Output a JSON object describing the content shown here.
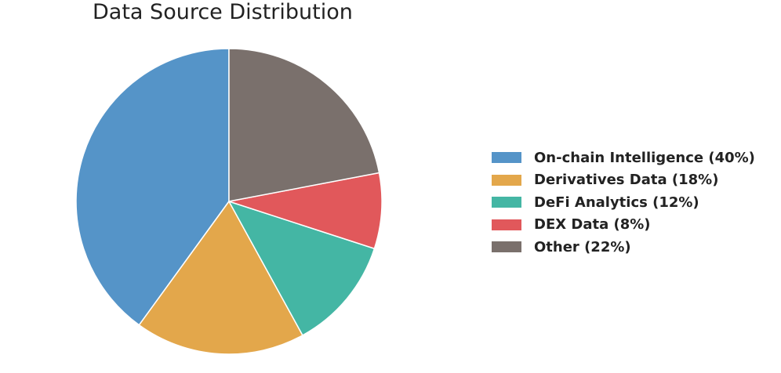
{
  "chart_data": {
    "type": "pie",
    "title": "Data Source Distribution",
    "slices": [
      {
        "label": "On-chain Intelligence (40%)",
        "value": 40,
        "color": "#5594c8"
      },
      {
        "label": "Derivatives Data (18%)",
        "value": 18,
        "color": "#e3a74b"
      },
      {
        "label": "DeFi Analytics (12%)",
        "value": 12,
        "color": "#44b6a4"
      },
      {
        "label": "DEX Data (8%)",
        "value": 8,
        "color": "#e1585b"
      },
      {
        "label": "Other (22%)",
        "value": 22,
        "color": "#7a706c"
      }
    ],
    "start_angle": "top",
    "direction": "counterclockwise",
    "legend": "right"
  }
}
